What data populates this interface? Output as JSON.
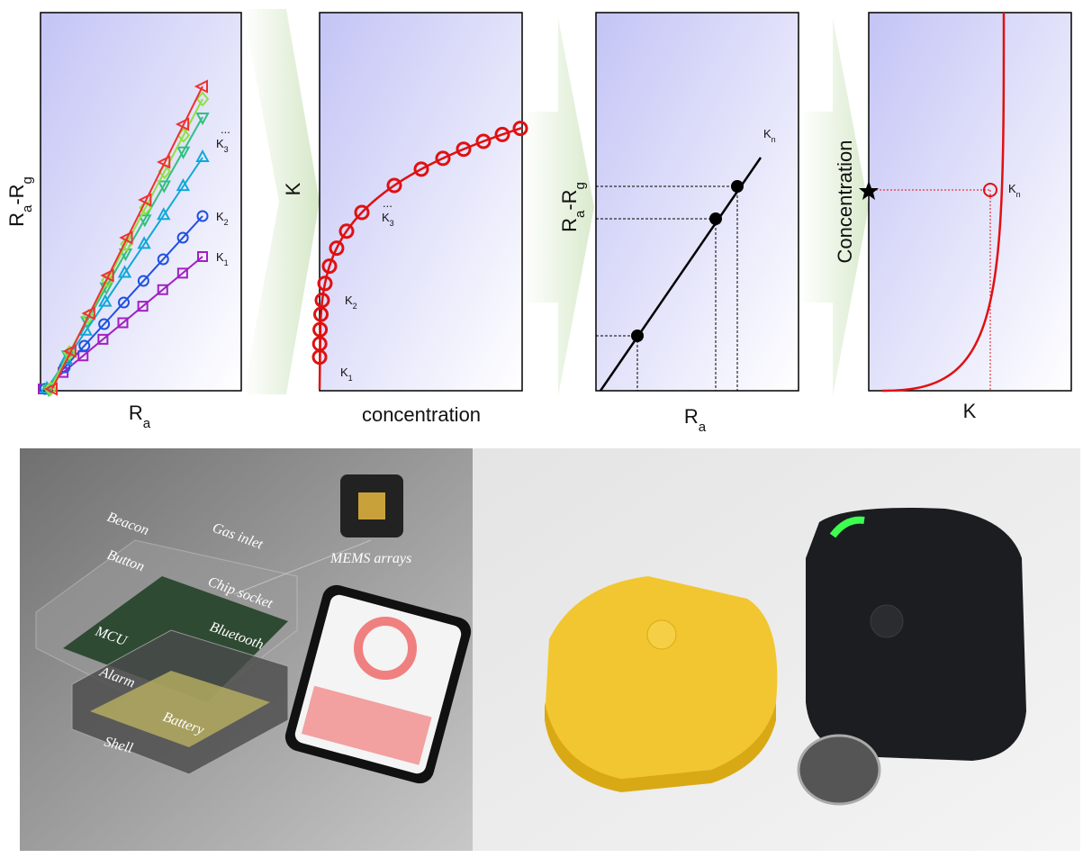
{
  "panels": [
    {
      "y_label": [
        {
          "text": "R",
          "sub": "a"
        },
        {
          "text": "-R",
          "sub": "g"
        }
      ],
      "x_label": {
        "text": "R",
        "sub": "a"
      },
      "annotations": [
        {
          "dots": "...",
          "text": "K",
          "sub": "3"
        },
        {
          "text": "K",
          "sub": "2"
        },
        {
          "text": "K",
          "sub": "1"
        }
      ]
    },
    {
      "y_label": "K",
      "x_label": "concentration",
      "annotations": [
        {
          "text": "K",
          "sub": "1"
        },
        {
          "text": "K",
          "sub": "2"
        },
        {
          "dots": "...",
          "text": "K",
          "sub": "3"
        }
      ]
    },
    {
      "y_label": [
        {
          "text": "R",
          "sub": "a"
        },
        {
          "text": "-R",
          "sub": "g"
        }
      ],
      "x_label": {
        "text": "R",
        "sub": "a"
      },
      "annotations": [
        {
          "text": "K",
          "sub": "n"
        }
      ]
    },
    {
      "y_label": "Concentration",
      "x_label": "K",
      "annotations": [
        {
          "text": "K",
          "sub": "n"
        }
      ]
    }
  ],
  "photo_labels": [
    "Beacon",
    "Gas inlet",
    "Button",
    "Chip socket",
    "MCU",
    "Bluetooth",
    "Alarm",
    "Battery",
    "Shell",
    "MEMS arrays"
  ]
}
